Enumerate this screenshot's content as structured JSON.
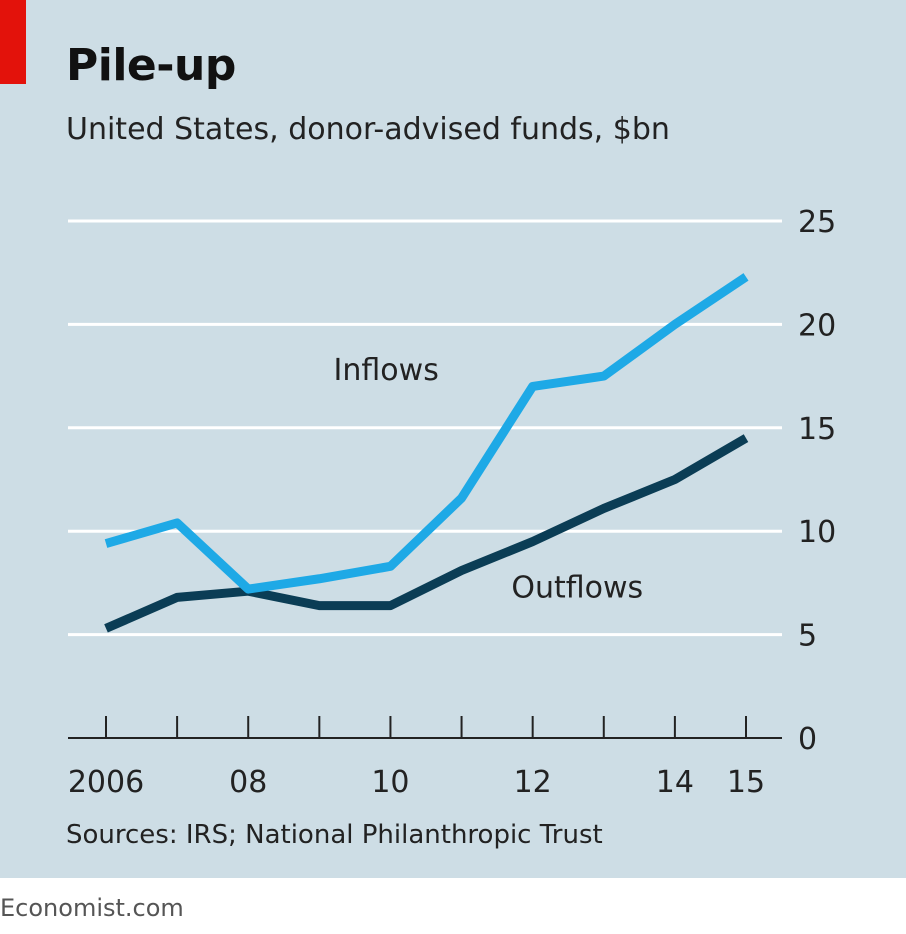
{
  "title": "Pile-up",
  "subtitle": "United States, donor-advised funds, $bn",
  "source": "Sources: IRS; National Philanthropic Trust",
  "brand": "Economist.com",
  "colors": {
    "inflows": "#1ea9e6",
    "outflows": "#0b3d55",
    "background": "#cddde5",
    "accent": "#e3120b",
    "grid": "#ffffff"
  },
  "chart_data": {
    "type": "line",
    "x": [
      2006,
      2007,
      2008,
      2009,
      2010,
      2011,
      2012,
      2013,
      2014,
      2015
    ],
    "x_tick_values": [
      2006,
      2008,
      2010,
      2012,
      2014,
      2015
    ],
    "x_tick_labels": [
      "2006",
      "08",
      "10",
      "12",
      "14",
      "15"
    ],
    "y_ticks": [
      0,
      5,
      10,
      15,
      20,
      25
    ],
    "ylim": [
      0,
      25
    ],
    "grid": true,
    "y_axis_side": "right",
    "series": [
      {
        "name": "Inflows",
        "values": [
          9.4,
          10.4,
          7.2,
          7.7,
          8.3,
          11.6,
          17.0,
          17.5,
          20.0,
          22.3
        ]
      },
      {
        "name": "Outflows",
        "values": [
          5.3,
          6.8,
          7.1,
          6.4,
          6.4,
          8.1,
          9.5,
          11.1,
          12.5,
          14.5
        ]
      }
    ]
  }
}
